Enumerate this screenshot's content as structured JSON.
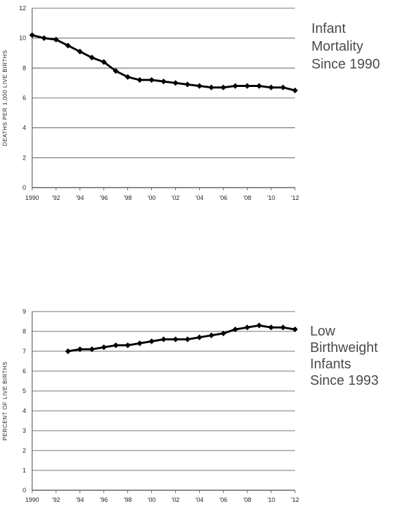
{
  "chart_data": [
    {
      "type": "line",
      "title": [
        "Infant",
        "Mortality",
        "Since 1990"
      ],
      "ylabel": "DEATHS PER 1,000 LIVE BIRTHS",
      "xlabel": "",
      "ylim": [
        0,
        12
      ],
      "yticks": [
        0,
        2,
        4,
        6,
        8,
        10,
        12
      ],
      "xlim": [
        1990,
        2012
      ],
      "xticks": [
        1990,
        1992,
        1994,
        1996,
        1998,
        2000,
        2002,
        2004,
        2006,
        2008,
        2010,
        2012
      ],
      "xtick_labels": [
        "1990",
        "'92",
        "'94",
        "'96",
        "'98",
        "'00",
        "'02",
        "'04",
        "'06",
        "'08",
        "'10",
        "'12"
      ],
      "grid": true,
      "x": [
        1990,
        1991,
        1992,
        1993,
        1994,
        1995,
        1996,
        1997,
        1998,
        1999,
        2000,
        2001,
        2002,
        2003,
        2004,
        2005,
        2006,
        2007,
        2008,
        2009,
        2010,
        2011,
        2012
      ],
      "values": [
        10.2,
        10.0,
        9.9,
        9.5,
        9.1,
        8.7,
        8.4,
        7.8,
        7.4,
        7.2,
        7.2,
        7.1,
        7.0,
        6.9,
        6.8,
        6.7,
        6.7,
        6.8,
        6.8,
        6.8,
        6.7,
        6.7,
        6.5
      ]
    },
    {
      "type": "line",
      "title": [
        "Low",
        "Birthweight",
        "Infants",
        "Since 1993"
      ],
      "ylabel": "PERCENT OF LIVE BIRTHS",
      "xlabel": "",
      "ylim": [
        0,
        9
      ],
      "yticks": [
        0,
        1,
        2,
        3,
        4,
        5,
        6,
        7,
        8,
        9
      ],
      "xlim": [
        1990,
        2012
      ],
      "xticks": [
        1990,
        1992,
        1994,
        1996,
        1998,
        2000,
        2002,
        2004,
        2006,
        2008,
        2010,
        2012
      ],
      "xtick_labels": [
        "1990",
        "'92",
        "'94",
        "'96",
        "'98",
        "'00",
        "'02",
        "'04",
        "'06",
        "'08",
        "'10",
        "'12"
      ],
      "grid": true,
      "x": [
        1993,
        1994,
        1995,
        1996,
        1997,
        1998,
        1999,
        2000,
        2001,
        2002,
        2003,
        2004,
        2005,
        2006,
        2007,
        2008,
        2009,
        2010,
        2011,
        2012
      ],
      "values": [
        7.0,
        7.1,
        7.1,
        7.2,
        7.3,
        7.3,
        7.4,
        7.5,
        7.6,
        7.6,
        7.6,
        7.7,
        7.8,
        7.9,
        8.1,
        8.2,
        8.3,
        8.2,
        8.2,
        8.1
      ]
    }
  ],
  "colors": {
    "line": "#000000",
    "grid": "#444444",
    "title": "#4a4a4a"
  }
}
